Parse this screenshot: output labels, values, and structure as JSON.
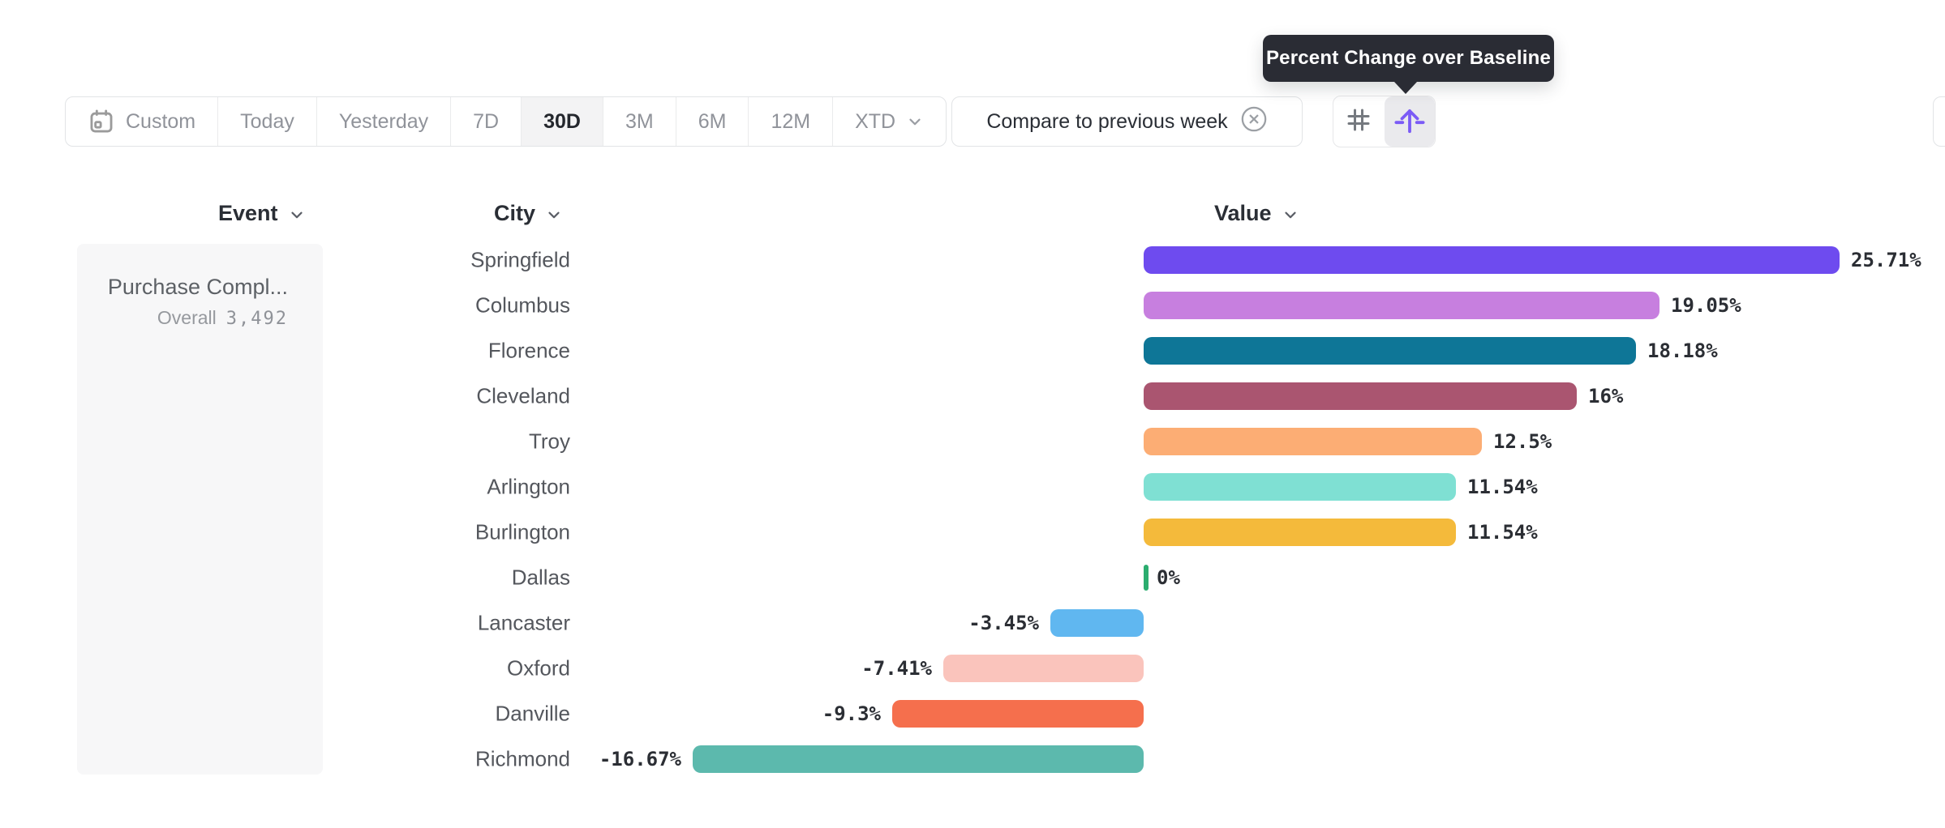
{
  "tooltip": {
    "text": "Percent Change over Baseline"
  },
  "toolbar": {
    "date_ranges": [
      {
        "label": "Custom",
        "icon": "calendar-icon"
      },
      {
        "label": "Today"
      },
      {
        "label": "Yesterday"
      },
      {
        "label": "7D"
      },
      {
        "label": "30D"
      },
      {
        "label": "3M"
      },
      {
        "label": "6M"
      },
      {
        "label": "12M"
      },
      {
        "label": "XTD",
        "icon": "chevron-down-icon"
      }
    ],
    "selected_range": "30D",
    "compare": {
      "label": "Compare to previous week",
      "close_icon": "circle-x-icon"
    },
    "view_toggles": [
      {
        "icon": "number-sign-icon",
        "selected": false
      },
      {
        "icon": "percent-change-arrow-icon",
        "selected": true
      }
    ]
  },
  "columns": [
    {
      "label": "Event"
    },
    {
      "label": "City"
    },
    {
      "label": "Value"
    }
  ],
  "event_panel": {
    "event_name": "Purchase Compl...",
    "overall_label": "Overall",
    "overall_value": "3,492"
  },
  "chart_data": {
    "type": "bar",
    "orientation": "horizontal",
    "title": "Percent Change over Baseline",
    "value_format": "percent",
    "categories": [
      "Springfield",
      "Columbus",
      "Florence",
      "Cleveland",
      "Troy",
      "Arlington",
      "Burlington",
      "Dallas",
      "Lancaster",
      "Oxford",
      "Danville",
      "Richmond"
    ],
    "values": [
      25.71,
      19.05,
      18.18,
      16,
      12.5,
      11.54,
      11.54,
      0,
      -3.45,
      -7.41,
      -9.3,
      -16.67
    ],
    "labels": [
      "25.71%",
      "19.05%",
      "18.18%",
      "16%",
      "12.5%",
      "11.54%",
      "11.54%",
      "0%",
      "-3.45%",
      "-7.41%",
      "-9.3%",
      "-16.67%"
    ],
    "bar_colors": [
      "#6e4bef",
      "#c77fdf",
      "#0e7697",
      "#aa5570",
      "#fcad74",
      "#7fe0d3",
      "#f4ba3b",
      "#2bad6f",
      "#60b7f0",
      "#fac4bc",
      "#f56f4d",
      "#5cb9ad"
    ],
    "xlim": [
      -16.67,
      25.71
    ],
    "grid": false,
    "legend": false
  },
  "colors": {
    "accent_purple": "#7b5bf6",
    "tooltip_bg": "#2a2c34",
    "selected_segment_bg": "#f3f3f4",
    "panel_bg": "#f7f7f8",
    "border": "#e2e4e6",
    "muted_text": "#90939a",
    "dark_text": "#2a2e35"
  }
}
